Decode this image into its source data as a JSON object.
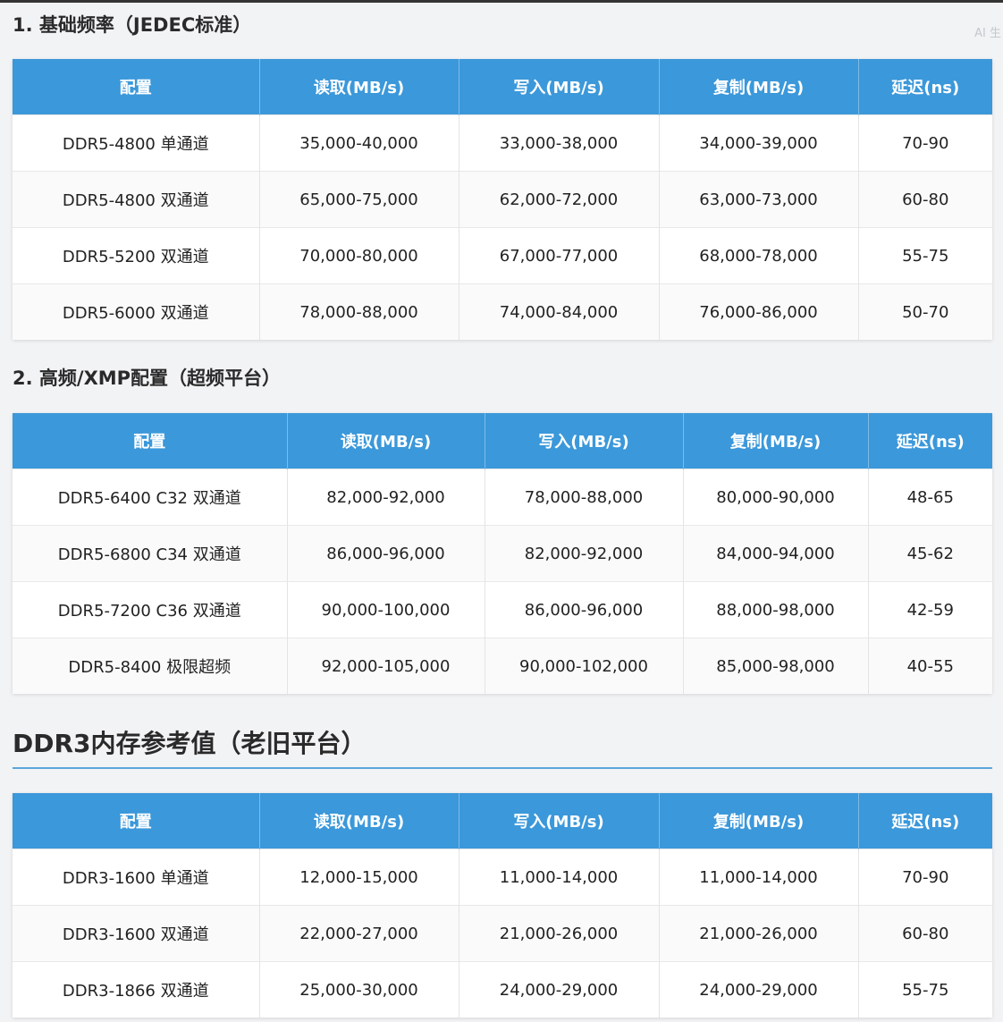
{
  "watermark": "AI 生",
  "section1": {
    "title": "1. 基础频率（JEDEC标准）",
    "headers": [
      "配置",
      "读取(MB/s)",
      "写入(MB/s)",
      "复制(MB/s)",
      "延迟(ns)"
    ],
    "rows": [
      [
        "DDR5-4800 单通道",
        "35,000-40,000",
        "33,000-38,000",
        "34,000-39,000",
        "70-90"
      ],
      [
        "DDR5-4800 双通道",
        "65,000-75,000",
        "62,000-72,000",
        "63,000-73,000",
        "60-80"
      ],
      [
        "DDR5-5200 双通道",
        "70,000-80,000",
        "67,000-77,000",
        "68,000-78,000",
        "55-75"
      ],
      [
        "DDR5-6000 双通道",
        "78,000-88,000",
        "74,000-84,000",
        "76,000-86,000",
        "50-70"
      ]
    ]
  },
  "section2": {
    "title": "2. 高频/XMP配置（超频平台）",
    "headers": [
      "配置",
      "读取(MB/s)",
      "写入(MB/s)",
      "复制(MB/s)",
      "延迟(ns)"
    ],
    "rows": [
      [
        "DDR5-6400 C32 双通道",
        "82,000-92,000",
        "78,000-88,000",
        "80,000-90,000",
        "48-65"
      ],
      [
        "DDR5-6800 C34 双通道",
        "86,000-96,000",
        "82,000-92,000",
        "84,000-94,000",
        "45-62"
      ],
      [
        "DDR5-7200 C36 双通道",
        "90,000-100,000",
        "86,000-96,000",
        "88,000-98,000",
        "42-59"
      ],
      [
        "DDR5-8400 极限超频",
        "92,000-105,000",
        "90,000-102,000",
        "85,000-98,000",
        "40-55"
      ]
    ]
  },
  "section3": {
    "title": "DDR3内存参考值（老旧平台）",
    "headers": [
      "配置",
      "读取(MB/s)",
      "写入(MB/s)",
      "复制(MB/s)",
      "延迟(ns)"
    ],
    "rows": [
      [
        "DDR3-1600 单通道",
        "12,000-15,000",
        "11,000-14,000",
        "11,000-14,000",
        "70-90"
      ],
      [
        "DDR3-1600 双通道",
        "22,000-27,000",
        "21,000-26,000",
        "21,000-26,000",
        "60-80"
      ],
      [
        "DDR3-1866 双通道",
        "25,000-30,000",
        "24,000-29,000",
        "24,000-29,000",
        "55-75"
      ]
    ]
  }
}
